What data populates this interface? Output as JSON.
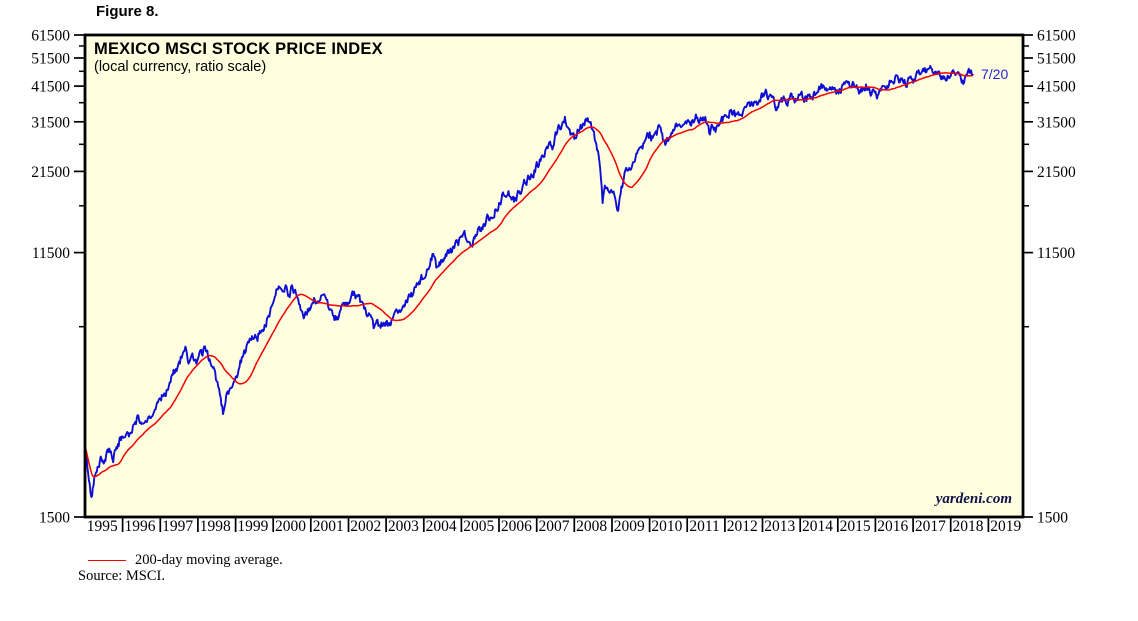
{
  "figure_label": "Figure 8.",
  "chart_data": {
    "type": "line",
    "title": "MEXICO MSCI STOCK PRICE INDEX",
    "subtitle": "(local currency, ratio scale)",
    "watermark": "yardeni.com",
    "source_note": "Source: MSCI.",
    "y_scale": "log",
    "ylim": [
      1500,
      61500
    ],
    "xlim": [
      1995.0,
      2019.92
    ],
    "grid": false,
    "y_major_ticks": [
      1500,
      11500,
      21500,
      31500,
      41500,
      51500,
      61500
    ],
    "y_minor_ticks": [
      6500,
      16500,
      26500,
      36500,
      46500,
      56500
    ],
    "x_years": [
      1995,
      1996,
      1997,
      1998,
      1999,
      2000,
      2001,
      2002,
      2003,
      2004,
      2005,
      2006,
      2007,
      2008,
      2009,
      2010,
      2011,
      2012,
      2013,
      2014,
      2015,
      2016,
      2017,
      2018,
      2019
    ],
    "legend": {
      "label": "200-day moving average.",
      "position": "below-left",
      "color": "#f40000"
    },
    "annotation": {
      "text": "7/20",
      "x": 2018.583,
      "value": 45300
    },
    "noise_seed": 20180720,
    "noise_log_amplitude": 0.026,
    "series": [
      {
        "name": "MSCI Mexico stock price index (daily, local currency)",
        "color": "#0d0dd6",
        "line_width": 1.9,
        "start_year": 1995.0,
        "points_per_year": 12,
        "values": [
          2600,
          2050,
          1700,
          2000,
          2200,
          2350,
          2250,
          2450,
          2500,
          2350,
          2550,
          2700,
          2750,
          2900,
          2850,
          3000,
          3100,
          3200,
          3150,
          3250,
          3200,
          3300,
          3350,
          3500,
          3700,
          3850,
          4000,
          4300,
          4500,
          4700,
          4900,
          5200,
          5400,
          4700,
          5000,
          5100,
          5000,
          5250,
          5450,
          5300,
          4900,
          4600,
          4200,
          3900,
          3400,
          3800,
          3900,
          4200,
          4400,
          4700,
          5100,
          5400,
          5600,
          5900,
          6200,
          6000,
          6300,
          6400,
          6800,
          7300,
          7900,
          8500,
          9100,
          8600,
          8900,
          8300,
          8700,
          8400,
          7900,
          7400,
          7000,
          7300,
          7600,
          7900,
          7700,
          8000,
          8200,
          8000,
          7600,
          7300,
          6900,
          7200,
          7500,
          7800,
          8000,
          8200,
          8400,
          8200,
          7900,
          7500,
          7200,
          6900,
          6500,
          6800,
          6400,
          6700,
          6700,
          6500,
          6800,
          7000,
          7300,
          7500,
          7800,
          8000,
          8300,
          8600,
          9000,
          9300,
          9600,
          10200,
          10800,
          11400,
          10300,
          10800,
          10600,
          11000,
          11400,
          11800,
          12100,
          12400,
          13000,
          13400,
          12600,
          12200,
          12800,
          13300,
          13800,
          14300,
          14800,
          15100,
          15600,
          16100,
          16800,
          17600,
          18300,
          18800,
          16600,
          17300,
          18000,
          18800,
          19500,
          20000,
          20800,
          21500,
          22500,
          23500,
          24500,
          25500,
          27000,
          26000,
          28500,
          30000,
          31000,
          32500,
          30000,
          29000,
          27500,
          29000,
          30000,
          31000,
          31800,
          30500,
          29000,
          26500,
          23500,
          17000,
          19200,
          18800,
          18500,
          17200,
          16300,
          18800,
          20500,
          21800,
          22800,
          23800,
          24800,
          25300,
          26300,
          27500,
          28500,
          27800,
          29000,
          29800,
          27800,
          26500,
          27800,
          28800,
          29800,
          30500,
          31200,
          31800,
          32300,
          31300,
          32000,
          33000,
          32200,
          32800,
          31800,
          29300,
          30800,
          29800,
          31000,
          31800,
          32800,
          33800,
          34300,
          33300,
          32500,
          33800,
          34300,
          35300,
          34800,
          35800,
          36300,
          37300,
          38300,
          39000,
          38000,
          37000,
          36000,
          34800,
          36500,
          37800,
          36800,
          38300,
          37300,
          38000,
          38800,
          37800,
          37000,
          38000,
          38800,
          39800,
          40500,
          41300,
          42000,
          40800,
          41800,
          39800,
          39300,
          40500,
          41300,
          41800,
          41300,
          42000,
          41300,
          39800,
          40800,
          41300,
          40300,
          39800,
          39000,
          38300,
          40300,
          41500,
          42300,
          42800,
          43500,
          44300,
          43800,
          43000,
          42300,
          43300,
          43800,
          44800,
          45500,
          46300,
          46800,
          47300,
          47800,
          47000,
          46000,
          44800,
          43500,
          44800,
          45800,
          47000,
          45800,
          44300,
          43300,
          44800,
          46300,
          45300
        ]
      },
      {
        "name": "200-day moving average",
        "color": "#f40000",
        "line_width": 1.5,
        "derived_from_series": 0,
        "window_days": 200
      }
    ],
    "plot_background": "#ffffe0",
    "border_color": "#000000"
  }
}
